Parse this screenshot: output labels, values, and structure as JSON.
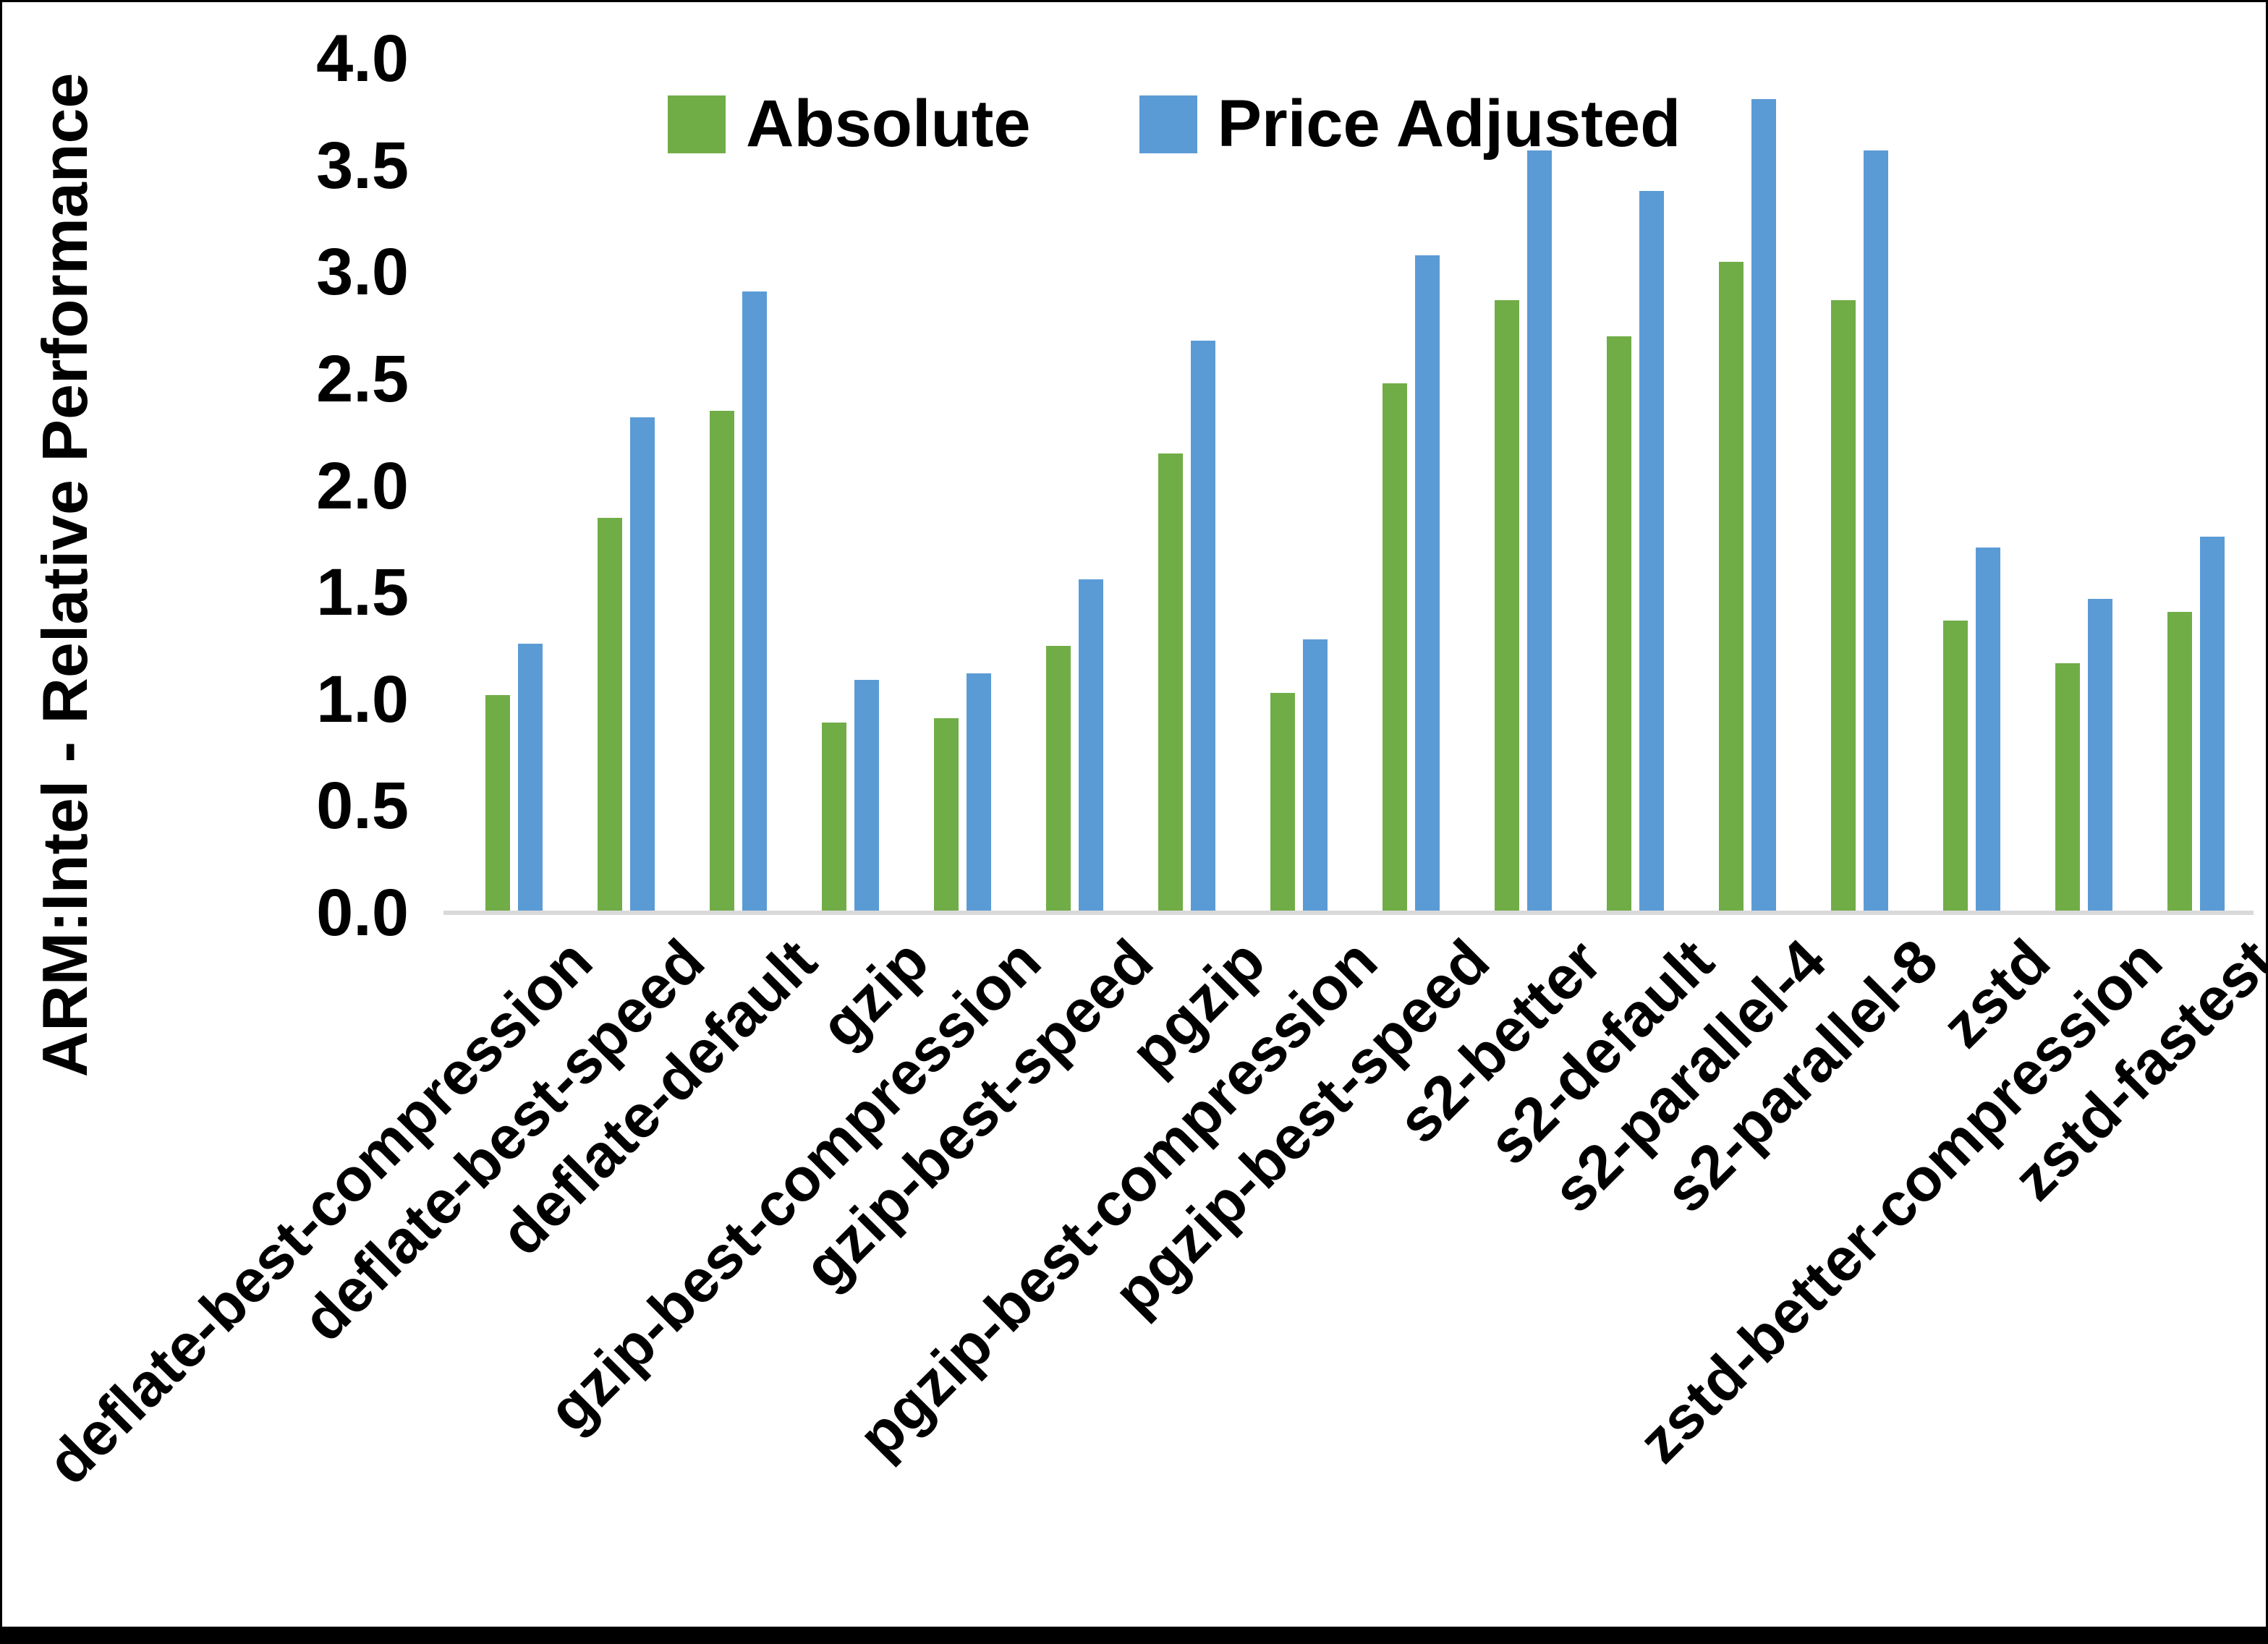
{
  "figure": {
    "background": "#FFFFFF",
    "border_color": "#000000"
  },
  "chart_data": {
    "type": "bar",
    "title": "",
    "xlabel": "",
    "ylabel": "ARM:Intel - Relative Performance",
    "ylim": [
      0.0,
      4.0
    ],
    "y_tick_step": 0.5,
    "y_ticks": [
      "4.0",
      "3.5",
      "3.0",
      "2.5",
      "2.0",
      "1.5",
      "1.0",
      "0.5",
      "0.0"
    ],
    "grid": false,
    "legend_position": "top-center",
    "axis_line_color": "#D9D9D9",
    "categories": [
      "deflate-best-compression",
      "deflate-best-speed",
      "deflate-default",
      "gzip",
      "gzip-best-compression",
      "gzip-best-speed",
      "pgzip",
      "pgzip-best-compression",
      "pgzip-best-speed",
      "s2-better",
      "s2-default",
      "s2-parallel-4",
      "s2-parallel-8",
      "zstd",
      "zstd-better-compression",
      "zstd-fastest"
    ],
    "series": [
      {
        "name": "Absolute",
        "color": "#70AD47",
        "values": [
          1.02,
          1.85,
          2.35,
          0.89,
          0.91,
          1.25,
          2.15,
          1.03,
          2.48,
          2.87,
          2.7,
          3.05,
          2.87,
          1.37,
          1.17,
          1.41
        ]
      },
      {
        "name": "Price Adjusted",
        "color": "#5B9BD5",
        "values": [
          1.26,
          2.32,
          2.91,
          1.09,
          1.12,
          1.56,
          2.68,
          1.28,
          3.08,
          3.57,
          3.38,
          3.81,
          3.57,
          1.71,
          1.47,
          1.76
        ]
      }
    ]
  }
}
